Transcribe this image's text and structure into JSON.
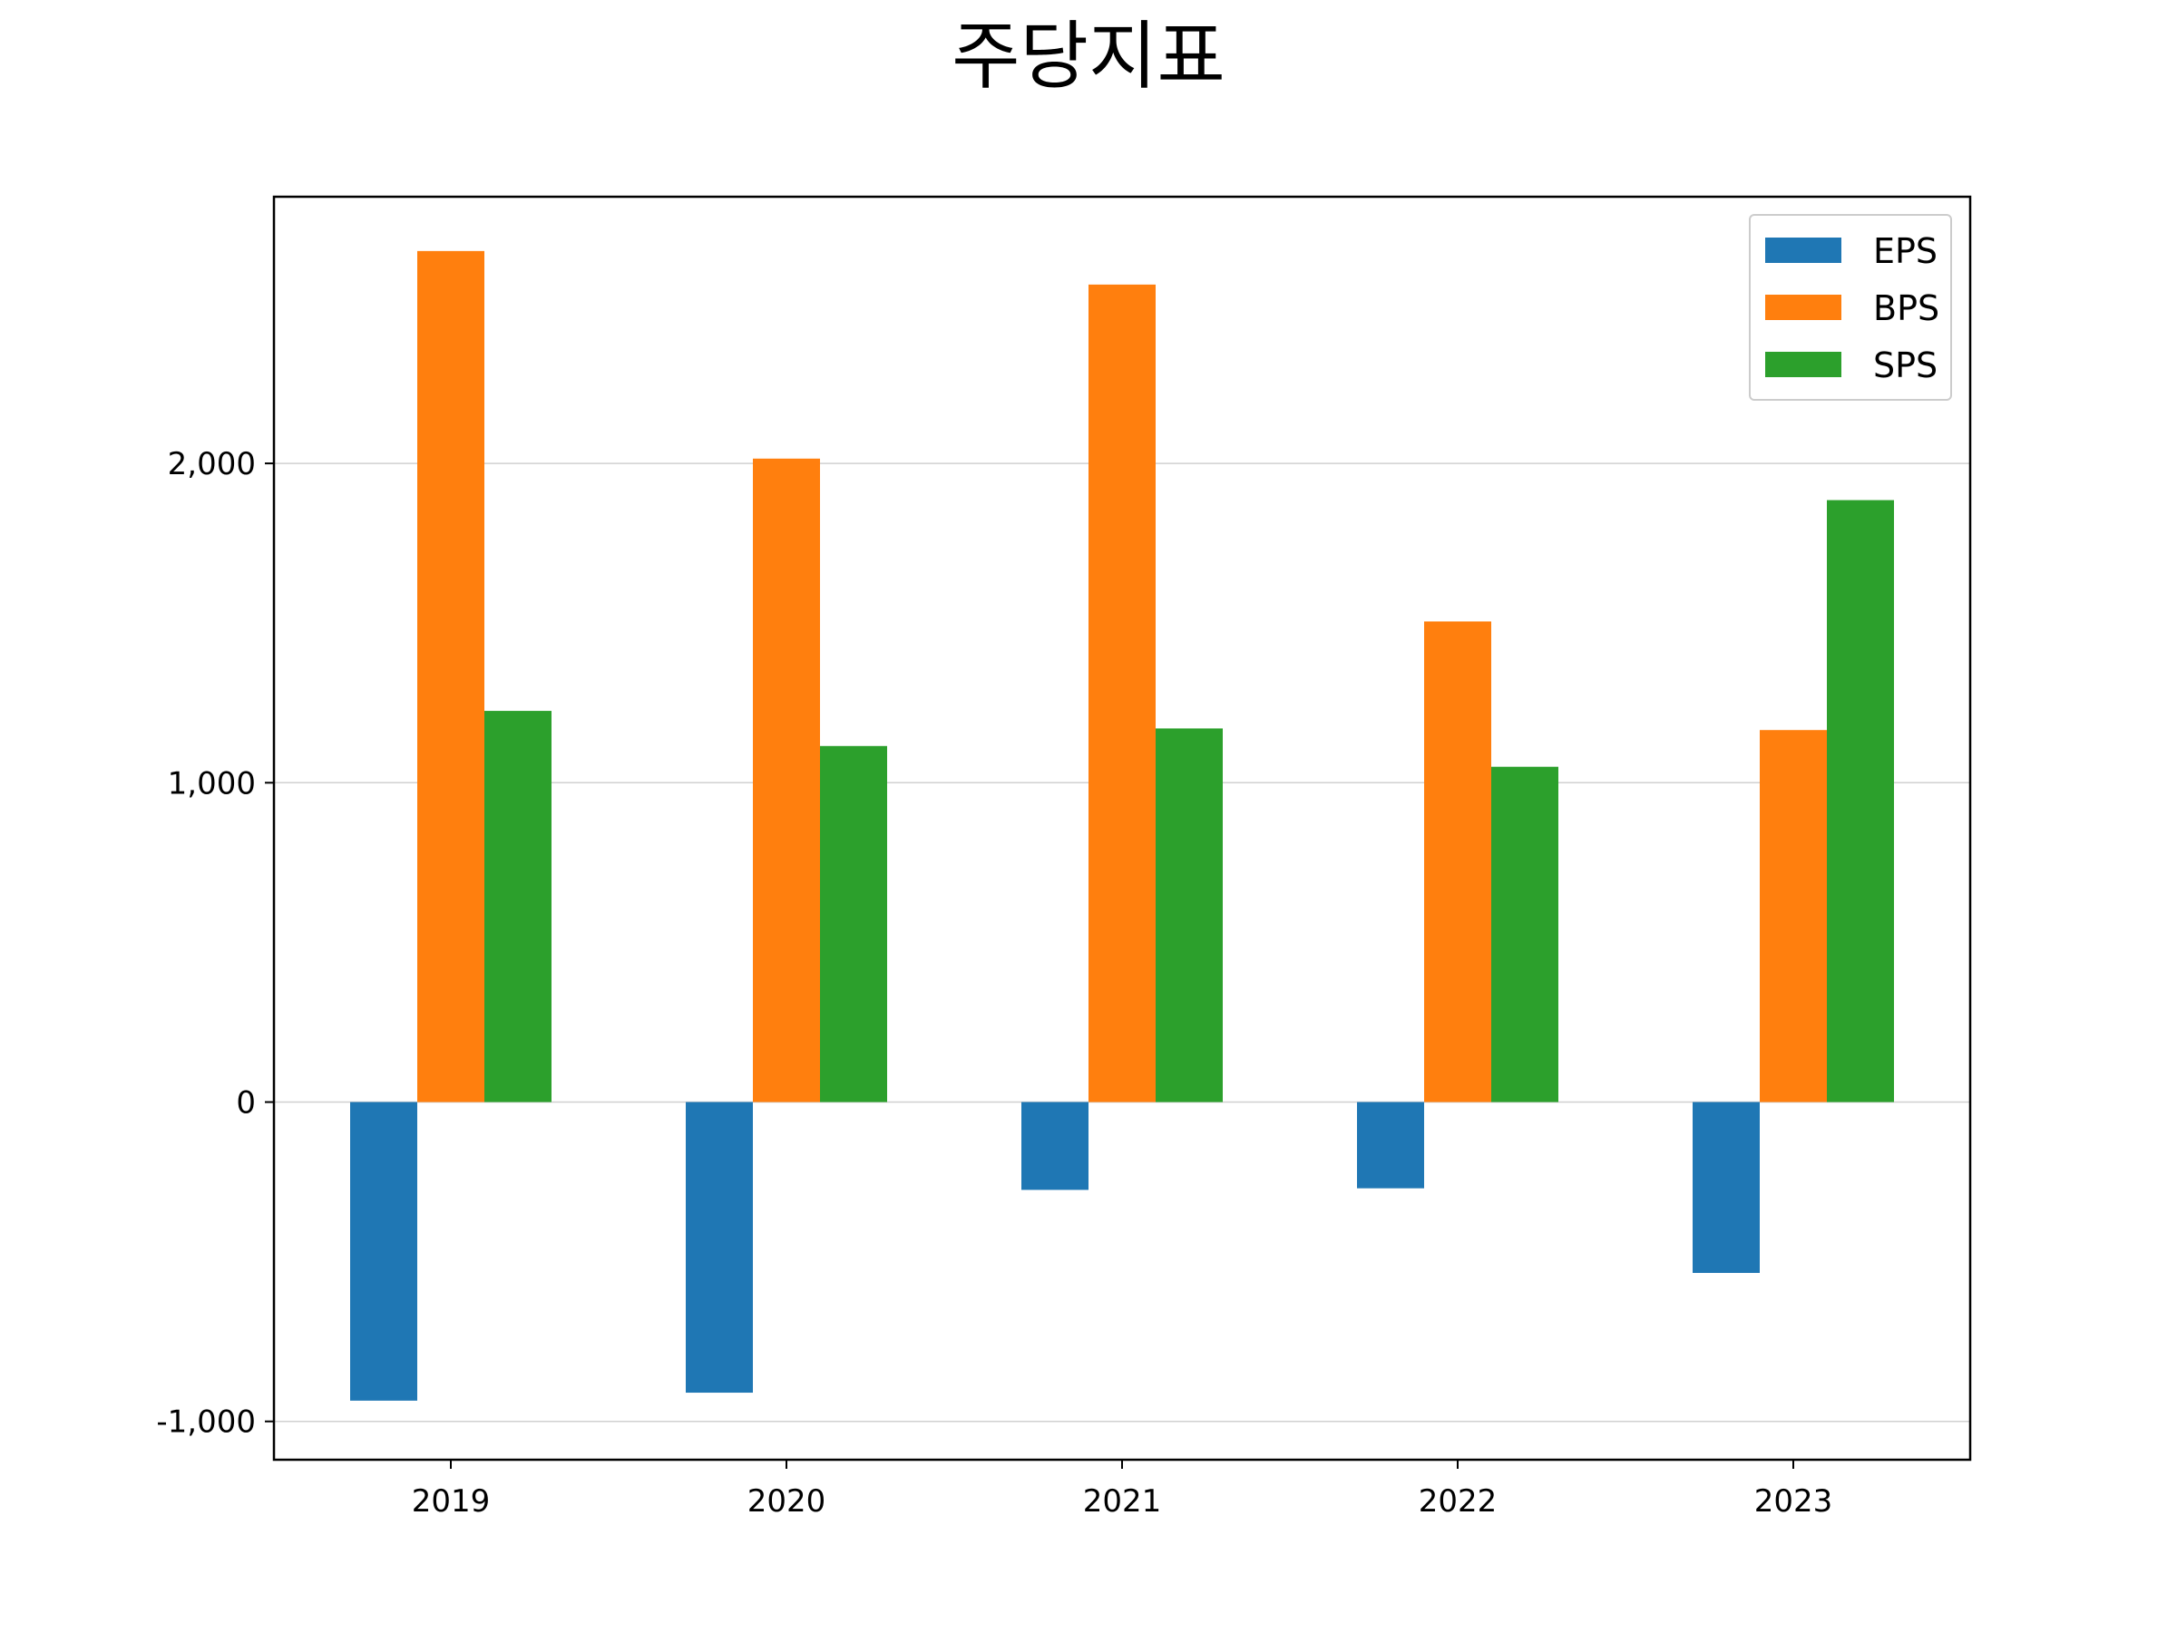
{
  "chart_data": {
    "type": "bar",
    "title": "주당지표",
    "xlabel": "",
    "ylabel": "",
    "categories": [
      "2019",
      "2020",
      "2021",
      "2022",
      "2023"
    ],
    "series": [
      {
        "name": "EPS",
        "color": "#1f77b4",
        "values": [
          -935,
          -910,
          -275,
          -270,
          -535
        ]
      },
      {
        "name": "BPS",
        "color": "#ff7f0e",
        "values": [
          2665,
          2015,
          2560,
          1505,
          1165
        ]
      },
      {
        "name": "SPS",
        "color": "#2ca02c",
        "values": [
          1225,
          1115,
          1170,
          1050,
          1885
        ]
      }
    ],
    "ylim": [
      -1120,
      2835
    ],
    "yticks": [
      -1000,
      0,
      1000,
      2000
    ],
    "ytick_labels": [
      "-1,000",
      "0",
      "1,000",
      "2,000"
    ],
    "grid": "horizontal",
    "legend": "top-right"
  }
}
